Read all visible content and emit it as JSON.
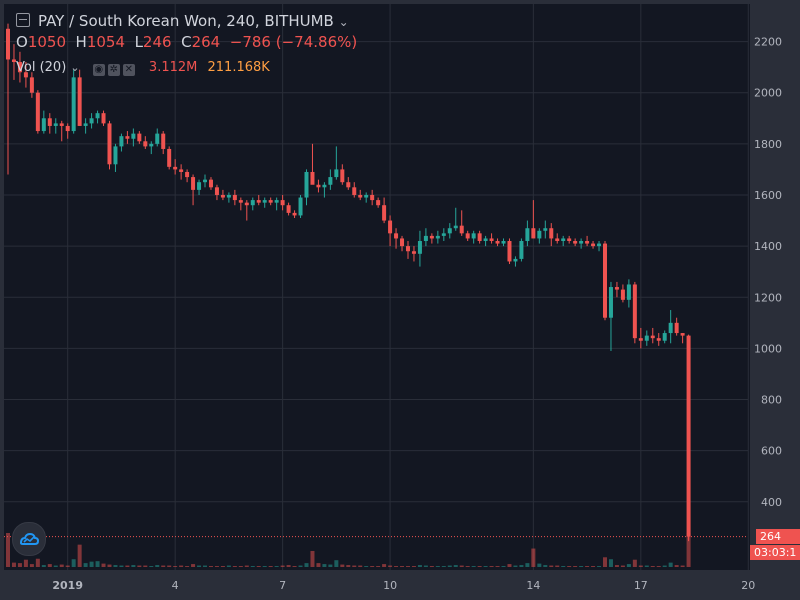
{
  "header": {
    "symbol_line": "PAY / South Korean Won, 240, BITHUMB",
    "chevron": "⌄",
    "menu_icon": "hamburger-icon"
  },
  "ohlc": {
    "o_label": "O",
    "o_value": "1050",
    "h_label": "H",
    "h_value": "1054",
    "l_label": "L",
    "l_value": "246",
    "c_label": "C",
    "c_value": "264",
    "change": "−786 (−74.86%)"
  },
  "volume_legend": {
    "label": "Vol (20)",
    "chevron": "⌄",
    "value_1": "3.112M",
    "value_2": "211.168K",
    "icons": [
      "eye-icon",
      "settings-icon",
      "close-icon"
    ]
  },
  "price_tag": {
    "label": "264",
    "color": "#ef5350"
  },
  "timer_tag": {
    "label": "03:03:1"
  },
  "colors": {
    "up": "#26a69a",
    "down": "#ef5350",
    "background": "#131722",
    "grid": "#2a2e39",
    "text": "#b2b5be"
  },
  "chart_data": {
    "type": "candlestick",
    "y_ticks": [
      400,
      600,
      800,
      1000,
      1200,
      1400,
      1600,
      1800,
      2000,
      2200
    ],
    "ylim": [
      235,
      2300
    ],
    "x_ticks": [
      {
        "label": "2019",
        "index": 10
      },
      {
        "label": "4",
        "index": 28
      },
      {
        "label": "7",
        "index": 46
      },
      {
        "label": "10",
        "index": 64
      },
      {
        "label": "14",
        "index": 88
      },
      {
        "label": "17",
        "index": 106
      },
      {
        "label": "20",
        "index": 124
      }
    ],
    "grid": true,
    "candles": [
      [
        2250,
        2270,
        1680,
        2130
      ],
      [
        2130,
        2190,
        2050,
        2120
      ],
      [
        2120,
        2160,
        2040,
        2080
      ],
      [
        2080,
        2120,
        2020,
        2060
      ],
      [
        2060,
        2080,
        1980,
        2000
      ],
      [
        2000,
        2010,
        1840,
        1850
      ],
      [
        1850,
        1930,
        1840,
        1900
      ],
      [
        1900,
        1920,
        1840,
        1870
      ],
      [
        1870,
        1900,
        1840,
        1880
      ],
      [
        1880,
        1890,
        1810,
        1870
      ],
      [
        1870,
        1880,
        1820,
        1850
      ],
      [
        1850,
        2090,
        1840,
        2060
      ],
      [
        2060,
        2090,
        1870,
        1870
      ],
      [
        1870,
        1900,
        1840,
        1880
      ],
      [
        1880,
        1920,
        1860,
        1900
      ],
      [
        1900,
        1930,
        1880,
        1920
      ],
      [
        1920,
        1930,
        1870,
        1880
      ],
      [
        1880,
        1890,
        1700,
        1720
      ],
      [
        1720,
        1800,
        1690,
        1790
      ],
      [
        1790,
        1840,
        1770,
        1830
      ],
      [
        1830,
        1850,
        1800,
        1820
      ],
      [
        1820,
        1860,
        1790,
        1840
      ],
      [
        1840,
        1850,
        1800,
        1810
      ],
      [
        1810,
        1830,
        1780,
        1790
      ],
      [
        1790,
        1810,
        1760,
        1800
      ],
      [
        1800,
        1860,
        1790,
        1840
      ],
      [
        1840,
        1850,
        1760,
        1780
      ],
      [
        1780,
        1790,
        1700,
        1710
      ],
      [
        1710,
        1740,
        1680,
        1700
      ],
      [
        1700,
        1720,
        1660,
        1690
      ],
      [
        1690,
        1700,
        1650,
        1670
      ],
      [
        1670,
        1680,
        1560,
        1620
      ],
      [
        1620,
        1660,
        1600,
        1650
      ],
      [
        1650,
        1680,
        1630,
        1660
      ],
      [
        1660,
        1670,
        1620,
        1630
      ],
      [
        1630,
        1640,
        1580,
        1600
      ],
      [
        1600,
        1620,
        1580,
        1590
      ],
      [
        1590,
        1610,
        1570,
        1600
      ],
      [
        1600,
        1620,
        1560,
        1580
      ],
      [
        1580,
        1590,
        1540,
        1570
      ],
      [
        1570,
        1580,
        1500,
        1560
      ],
      [
        1560,
        1590,
        1540,
        1580
      ],
      [
        1580,
        1600,
        1560,
        1570
      ],
      [
        1570,
        1590,
        1550,
        1580
      ],
      [
        1580,
        1590,
        1560,
        1570
      ],
      [
        1570,
        1590,
        1540,
        1580
      ],
      [
        1580,
        1600,
        1540,
        1560
      ],
      [
        1560,
        1570,
        1520,
        1530
      ],
      [
        1530,
        1540,
        1510,
        1520
      ],
      [
        1520,
        1600,
        1510,
        1590
      ],
      [
        1590,
        1700,
        1560,
        1690
      ],
      [
        1690,
        1800,
        1660,
        1640
      ],
      [
        1640,
        1660,
        1610,
        1630
      ],
      [
        1630,
        1650,
        1590,
        1640
      ],
      [
        1640,
        1700,
        1620,
        1670
      ],
      [
        1670,
        1790,
        1660,
        1700
      ],
      [
        1700,
        1720,
        1640,
        1650
      ],
      [
        1650,
        1670,
        1620,
        1630
      ],
      [
        1630,
        1650,
        1590,
        1600
      ],
      [
        1600,
        1620,
        1580,
        1590
      ],
      [
        1590,
        1610,
        1570,
        1600
      ],
      [
        1600,
        1620,
        1560,
        1580
      ],
      [
        1580,
        1590,
        1550,
        1560
      ],
      [
        1560,
        1590,
        1490,
        1500
      ],
      [
        1500,
        1520,
        1400,
        1450
      ],
      [
        1450,
        1470,
        1390,
        1430
      ],
      [
        1430,
        1440,
        1380,
        1400
      ],
      [
        1400,
        1420,
        1350,
        1380
      ],
      [
        1380,
        1400,
        1340,
        1370
      ],
      [
        1370,
        1460,
        1320,
        1420
      ],
      [
        1420,
        1470,
        1400,
        1440
      ],
      [
        1440,
        1450,
        1410,
        1430
      ],
      [
        1430,
        1460,
        1410,
        1440
      ],
      [
        1440,
        1470,
        1420,
        1450
      ],
      [
        1450,
        1490,
        1430,
        1470
      ],
      [
        1470,
        1550,
        1460,
        1480
      ],
      [
        1480,
        1540,
        1440,
        1450
      ],
      [
        1450,
        1460,
        1420,
        1430
      ],
      [
        1430,
        1460,
        1410,
        1450
      ],
      [
        1450,
        1460,
        1410,
        1420
      ],
      [
        1420,
        1440,
        1400,
        1430
      ],
      [
        1430,
        1450,
        1410,
        1420
      ],
      [
        1420,
        1430,
        1400,
        1410
      ],
      [
        1410,
        1430,
        1400,
        1420
      ],
      [
        1420,
        1430,
        1330,
        1340
      ],
      [
        1340,
        1360,
        1320,
        1350
      ],
      [
        1350,
        1430,
        1340,
        1420
      ],
      [
        1420,
        1500,
        1400,
        1470
      ],
      [
        1470,
        1580,
        1450,
        1430
      ],
      [
        1430,
        1470,
        1410,
        1460
      ],
      [
        1460,
        1500,
        1430,
        1470
      ],
      [
        1470,
        1490,
        1400,
        1430
      ],
      [
        1430,
        1450,
        1410,
        1420
      ],
      [
        1420,
        1440,
        1400,
        1430
      ],
      [
        1430,
        1440,
        1410,
        1420
      ],
      [
        1420,
        1430,
        1400,
        1410
      ],
      [
        1410,
        1430,
        1390,
        1420
      ],
      [
        1420,
        1440,
        1400,
        1410
      ],
      [
        1410,
        1420,
        1390,
        1400
      ],
      [
        1400,
        1420,
        1380,
        1410
      ],
      [
        1410,
        1420,
        1110,
        1120
      ],
      [
        1120,
        1260,
        990,
        1240
      ],
      [
        1240,
        1260,
        1200,
        1230
      ],
      [
        1230,
        1250,
        1180,
        1190
      ],
      [
        1190,
        1270,
        1160,
        1250
      ],
      [
        1250,
        1260,
        1020,
        1040
      ],
      [
        1040,
        1080,
        1000,
        1030
      ],
      [
        1030,
        1070,
        1010,
        1050
      ],
      [
        1050,
        1080,
        1020,
        1040
      ],
      [
        1040,
        1060,
        1010,
        1030
      ],
      [
        1030,
        1070,
        1020,
        1060
      ],
      [
        1060,
        1150,
        1020,
        1100
      ],
      [
        1100,
        1120,
        1050,
        1060
      ],
      [
        1060,
        1060,
        1020,
        1050
      ],
      [
        1050,
        1054,
        246,
        264
      ]
    ],
    "volumes": [
      700,
      90,
      80,
      150,
      60,
      170,
      40,
      60,
      30,
      50,
      30,
      160,
      460,
      80,
      110,
      120,
      70,
      50,
      40,
      30,
      30,
      40,
      30,
      30,
      20,
      40,
      30,
      30,
      20,
      30,
      20,
      60,
      30,
      30,
      20,
      20,
      20,
      30,
      20,
      20,
      30,
      20,
      20,
      20,
      20,
      20,
      30,
      40,
      20,
      30,
      80,
      330,
      80,
      60,
      50,
      140,
      50,
      40,
      30,
      30,
      20,
      20,
      20,
      60,
      30,
      20,
      20,
      20,
      20,
      40,
      30,
      20,
      20,
      20,
      30,
      40,
      30,
      20,
      20,
      20,
      20,
      20,
      20,
      20,
      60,
      30,
      40,
      80,
      380,
      70,
      40,
      30,
      30,
      20,
      20,
      20,
      20,
      20,
      20,
      20,
      200,
      160,
      40,
      30,
      60,
      150,
      30,
      30,
      20,
      20,
      30,
      90,
      40,
      30,
      700
    ]
  }
}
